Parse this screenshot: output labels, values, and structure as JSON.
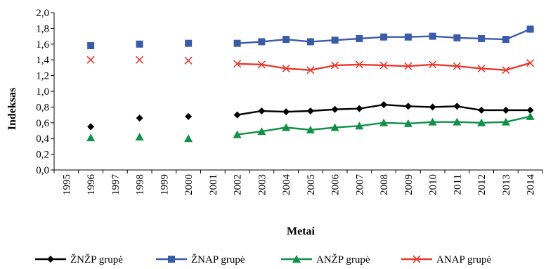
{
  "chart_data": {
    "type": "line",
    "xlabel": "Metai",
    "ylabel": "Indeksas",
    "ylim": [
      0,
      2
    ],
    "yticks": [
      "0,0",
      "0,2",
      "0,4",
      "0,6",
      "0,8",
      "1,0",
      "1,2",
      "1,4",
      "1,6",
      "1,8",
      "2,0"
    ],
    "categories": [
      "1995",
      "1996",
      "1997",
      "1998",
      "1999",
      "2000",
      "2001",
      "2002",
      "2003",
      "2004",
      "2005",
      "2006",
      "2007",
      "2008",
      "2009",
      "2010",
      "2011",
      "2012",
      "2013",
      "2014"
    ],
    "grid": false,
    "legend_position": "bottom",
    "series": [
      {
        "name": "ŽNŽP grupė",
        "color": "#000000",
        "marker": "diamond",
        "values": [
          null,
          0.55,
          null,
          0.66,
          null,
          0.68,
          null,
          0.7,
          0.75,
          0.74,
          0.75,
          0.77,
          0.78,
          0.83,
          0.81,
          0.8,
          0.81,
          0.76,
          0.76,
          0.76
        ]
      },
      {
        "name": "ŽNAP grupė",
        "color": "#3a5ba8",
        "marker": "square",
        "values": [
          null,
          1.58,
          null,
          1.6,
          null,
          1.61,
          null,
          1.61,
          1.63,
          1.66,
          1.63,
          1.65,
          1.67,
          1.69,
          1.69,
          1.7,
          1.68,
          1.67,
          1.66,
          1.79
        ]
      },
      {
        "name": "ANŽP grupė",
        "color": "#119148",
        "marker": "triangle",
        "values": [
          null,
          0.41,
          null,
          0.42,
          null,
          0.4,
          null,
          0.45,
          0.49,
          0.54,
          0.51,
          0.54,
          0.56,
          0.6,
          0.59,
          0.61,
          0.61,
          0.6,
          0.61,
          0.68
        ]
      },
      {
        "name": "ANAP grupė",
        "color": "#e8392e",
        "marker": "x",
        "values": [
          null,
          1.4,
          null,
          1.4,
          null,
          1.39,
          null,
          1.35,
          1.34,
          1.29,
          1.27,
          1.33,
          1.34,
          1.33,
          1.32,
          1.34,
          1.32,
          1.29,
          1.27,
          1.36
        ]
      }
    ]
  }
}
